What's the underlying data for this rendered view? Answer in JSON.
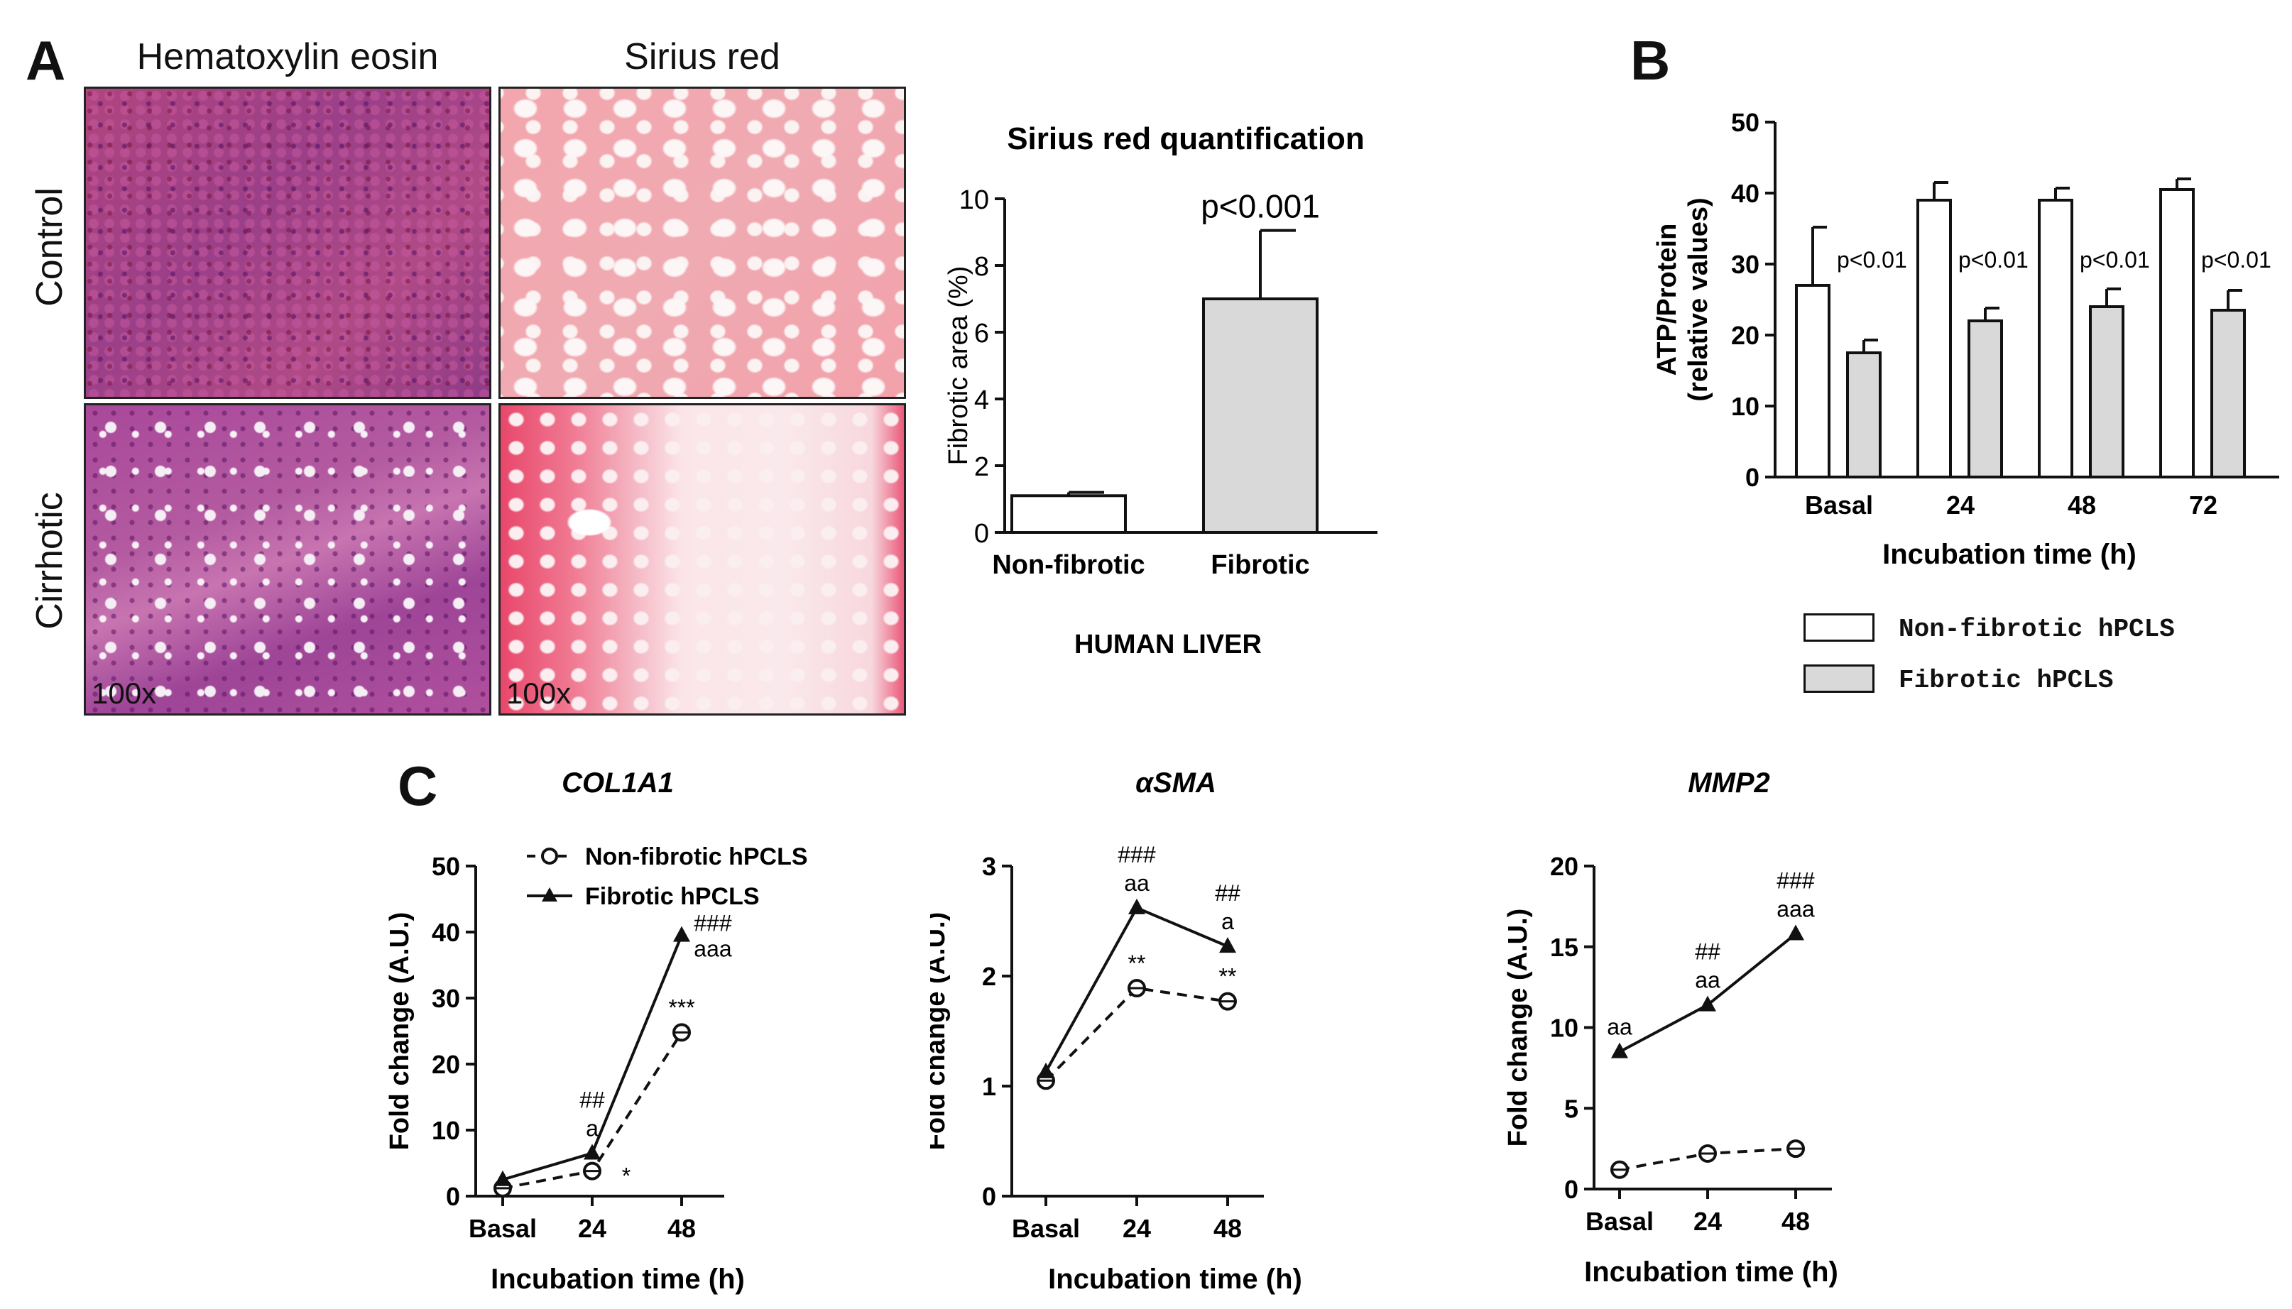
{
  "panel_a": {
    "letter": "A",
    "col_titles": [
      "Hematoxylin eosin",
      "Sirius red"
    ],
    "row_titles": [
      "Control",
      "Cirrhotic"
    ],
    "magnification": "100x"
  },
  "panel_b": {
    "letter": "B"
  },
  "panel_c": {
    "letter": "C"
  },
  "legend_b": {
    "items": [
      {
        "label": "Non-fibrotic hPCLS",
        "color": "#ffffff"
      },
      {
        "label": "Fibrotic hPCLS",
        "color": "#d9d9d9"
      }
    ]
  },
  "chart_data": [
    {
      "id": "sirius",
      "type": "bar",
      "title": "Sirius red quantification",
      "ylabel": "Fibrotic area (%)",
      "xlabel": "HUMAN LIVER",
      "categories": [
        "Non-fibrotic",
        "Fibrotic"
      ],
      "values": [
        1.1,
        7.0
      ],
      "errors": [
        0.1,
        2.05
      ],
      "colors": [
        "#ffffff",
        "#d9d9d9"
      ],
      "annotation": "p<0.001",
      "ylim": [
        0,
        10
      ],
      "yticks": [
        0,
        2,
        4,
        6,
        8,
        10
      ]
    },
    {
      "id": "atp",
      "type": "bar",
      "ylabel": [
        "ATP/Protein",
        "(relative values)"
      ],
      "xlabel": "Incubation time (h)",
      "categories": [
        "Basal",
        "24",
        "48",
        "72"
      ],
      "series": [
        {
          "name": "Non-fibrotic hPCLS",
          "color": "#ffffff",
          "values": [
            27,
            39,
            39,
            40.5
          ],
          "errors": [
            8.2,
            2.5,
            1.7,
            1.5
          ]
        },
        {
          "name": "Fibrotic hPCLS",
          "color": "#d9d9d9",
          "values": [
            17.5,
            22,
            24,
            23.5
          ],
          "errors": [
            1.8,
            1.8,
            2.5,
            2.8
          ]
        }
      ],
      "pvalues": [
        "p<0.01",
        "p<0.01",
        "p<0.01",
        "p<0.01"
      ],
      "ylim": [
        0,
        50
      ],
      "yticks": [
        0,
        10,
        20,
        30,
        40,
        50
      ]
    },
    {
      "id": "col1a1",
      "type": "line",
      "title": "COL1A1",
      "ylabel": "Fold change (A.U.)",
      "xlabel": "Incubation time (h)",
      "categories": [
        "Basal",
        "24",
        "48"
      ],
      "series": [
        {
          "name": "Non-fibrotic hPCLS",
          "style": "dashed",
          "marker": "circle",
          "values": [
            1.2,
            3.8,
            24.8
          ]
        },
        {
          "name": "Fibrotic hPCLS",
          "style": "solid",
          "marker": "triangle",
          "values": [
            2.5,
            6.5,
            39.5
          ]
        }
      ],
      "annotations": [
        {
          "series": 1,
          "index": 1,
          "lines": [
            "##",
            "a"
          ]
        },
        {
          "series": 1,
          "index": 2,
          "lines": [
            "###",
            "aaa"
          ],
          "side": "right"
        },
        {
          "series": 0,
          "index": 1,
          "lines": [
            "*"
          ],
          "side": "right-below"
        },
        {
          "series": 0,
          "index": 2,
          "lines": [
            "***"
          ]
        }
      ],
      "ylim": [
        0,
        50
      ],
      "yticks": [
        0,
        10,
        20,
        30,
        40,
        50
      ],
      "legend": true
    },
    {
      "id": "asma",
      "type": "line",
      "title": "αSMA",
      "ylabel": "Fold change (A.U.)",
      "xlabel": "Incubation time (h)",
      "categories": [
        "Basal",
        "24",
        "48"
      ],
      "series": [
        {
          "name": "Non-fibrotic hPCLS",
          "style": "dashed",
          "marker": "circle",
          "values": [
            1.05,
            1.89,
            1.77
          ]
        },
        {
          "name": "Fibrotic hPCLS",
          "style": "solid",
          "marker": "triangle",
          "values": [
            1.13,
            2.62,
            2.27
          ]
        }
      ],
      "annotations": [
        {
          "series": 1,
          "index": 1,
          "lines": [
            "###",
            "aa"
          ]
        },
        {
          "series": 1,
          "index": 2,
          "lines": [
            "##",
            "a"
          ]
        },
        {
          "series": 0,
          "index": 1,
          "lines": [
            "**"
          ]
        },
        {
          "series": 0,
          "index": 2,
          "lines": [
            "**"
          ]
        }
      ],
      "ylim": [
        0,
        3
      ],
      "yticks": [
        0,
        1,
        2,
        3
      ]
    },
    {
      "id": "mmp2",
      "type": "line",
      "title": "MMP2",
      "ylabel": "Fold change (A.U.)",
      "xlabel": "Incubation time (h)",
      "categories": [
        "Basal",
        "24",
        "48"
      ],
      "series": [
        {
          "name": "Non-fibrotic hPCLS",
          "style": "dashed",
          "marker": "circle",
          "values": [
            1.2,
            2.2,
            2.5
          ]
        },
        {
          "name": "Fibrotic hPCLS",
          "style": "solid",
          "marker": "triangle",
          "values": [
            8.5,
            11.4,
            15.8
          ]
        }
      ],
      "annotations": [
        {
          "series": 1,
          "index": 0,
          "lines": [
            "aa"
          ]
        },
        {
          "series": 1,
          "index": 1,
          "lines": [
            "##",
            "aa"
          ]
        },
        {
          "series": 1,
          "index": 2,
          "lines": [
            "###",
            "aaa"
          ]
        }
      ],
      "ylim": [
        0,
        20
      ],
      "yticks": [
        0,
        5,
        10,
        15,
        20
      ]
    }
  ]
}
